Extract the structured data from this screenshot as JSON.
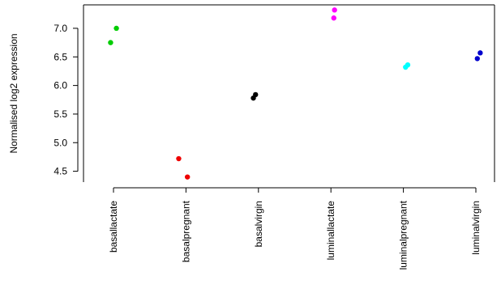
{
  "chart_data": {
    "type": "scatter",
    "title": "",
    "xlabel": "",
    "ylabel": "Normalised log2 expression",
    "categories": [
      "basallactate",
      "basalpregnant",
      "basalvirgin",
      "luminallactate",
      "luminalpregnant",
      "luminalvirgin"
    ],
    "colors": [
      "#00cd00",
      "#ee0000",
      "#000000",
      "#ff00ff",
      "#00ffff",
      "#0000cd"
    ],
    "points": [
      {
        "category": "basallactate",
        "y": 7.0,
        "jitter": 0.04
      },
      {
        "category": "basallactate",
        "y": 6.75,
        "jitter": -0.04
      },
      {
        "category": "basalpregnant",
        "y": 4.72,
        "jitter": -0.1
      },
      {
        "category": "basalpregnant",
        "y": 4.4,
        "jitter": 0.02
      },
      {
        "category": "basalvirgin",
        "y": 5.78,
        "jitter": -0.07
      },
      {
        "category": "basalvirgin",
        "y": 5.84,
        "jitter": -0.04
      },
      {
        "category": "luminallactate",
        "y": 7.32,
        "jitter": 0.05
      },
      {
        "category": "luminallactate",
        "y": 7.18,
        "jitter": 0.04
      },
      {
        "category": "luminalpregnant",
        "y": 6.32,
        "jitter": 0.03
      },
      {
        "category": "luminalpregnant",
        "y": 6.36,
        "jitter": 0.06
      },
      {
        "category": "luminalvirgin",
        "y": 6.57,
        "jitter": 0.06
      },
      {
        "category": "luminalvirgin",
        "y": 6.47,
        "jitter": 0.02
      }
    ],
    "yticks": [
      4.5,
      5.0,
      5.5,
      6.0,
      6.5,
      7.0
    ],
    "ytick_labels": [
      "4.5",
      "5.0",
      "5.5",
      "6.0",
      "6.5",
      "7.0"
    ],
    "ylim": [
      4.31,
      7.41
    ],
    "grid": false,
    "legend": "none"
  }
}
